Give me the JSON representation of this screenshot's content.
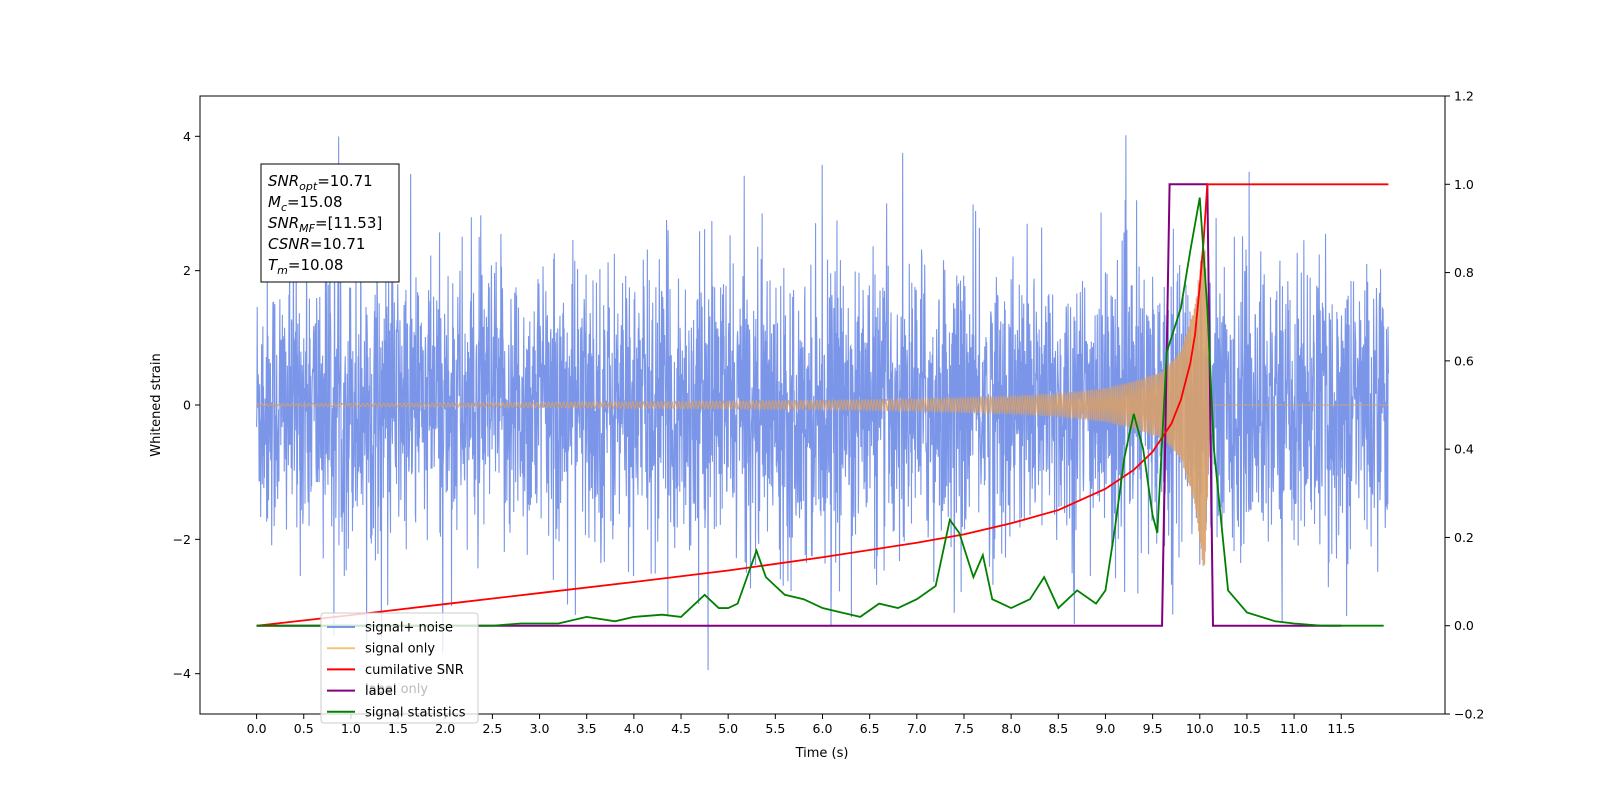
{
  "chart_data": {
    "type": "line",
    "xlabel": "Time (s)",
    "ylabel": "Whitened strain",
    "xlim": [
      -0.6,
      12.6
    ],
    "ylim_left": [
      -4.6,
      4.6
    ],
    "ylim_right": [
      -0.2,
      1.2
    ],
    "x_ticks": [
      0.0,
      0.5,
      1.0,
      1.5,
      2.0,
      2.5,
      3.0,
      3.5,
      4.0,
      4.5,
      5.0,
      5.5,
      6.0,
      6.5,
      7.0,
      7.5,
      8.0,
      8.5,
      9.0,
      9.5,
      10.0,
      10.5,
      11.0,
      11.5
    ],
    "x_tick_labels": [
      "0.0",
      "0.5",
      "1.0",
      "1.5",
      "2.0",
      "2.5",
      "3.0",
      "3.5",
      "4.0",
      "4.5",
      "5.0",
      "5.5",
      "6.0",
      "6.5",
      "7.0",
      "7.5",
      "8.0",
      "8.5",
      "9.0",
      "9.5",
      "10.0",
      "10.5",
      "11.0",
      "11.5"
    ],
    "y_left_ticks": [
      -4,
      -2,
      0,
      2,
      4
    ],
    "y_left_tick_labels": [
      "−4",
      "−2",
      "0",
      "2",
      "4"
    ],
    "y_right_ticks": [
      -0.2,
      0.0,
      0.2,
      0.4,
      0.6,
      0.8,
      1.0,
      1.2
    ],
    "y_right_tick_labels": [
      "−0.2",
      "0.0",
      "0.2",
      "0.4",
      "0.6",
      "0.8",
      "1.0",
      "1.2"
    ],
    "annotation": {
      "lines": [
        {
          "main": "SNR",
          "sub": "opt",
          "rest": "=10.71"
        },
        {
          "main": "M",
          "sub": "c",
          "rest": "=15.08"
        },
        {
          "main": "SNR",
          "sub": "MF",
          "rest": "=[11.53]"
        },
        {
          "main": "CSNR",
          "sub": "",
          "rest": "=10.71"
        },
        {
          "main": "T",
          "sub": "m",
          "rest": "=10.08"
        }
      ]
    },
    "legend": {
      "placement": "lower-left",
      "entries": [
        {
          "label": "signal+ noise",
          "color": "#7b96e8"
        },
        {
          "label": "signal only",
          "color": "#f5c27a"
        },
        {
          "label": "cumilative SNR",
          "color": "#ff0000"
        },
        {
          "label": "label",
          "color": "#800080"
        },
        {
          "label": "signal statistics",
          "color": "#008000"
        }
      ],
      "hidden_text": "label only"
    },
    "series": [
      {
        "name": "signal+ noise",
        "axis": "left",
        "color": "#7b96e8",
        "x_range": [
          0.0,
          12.0
        ],
        "noise_amplitude_typical": 2.8,
        "noise_amplitude_peak": 4.1
      },
      {
        "name": "signal only",
        "axis": "left",
        "color": "#d8a06a",
        "x_range": [
          0.0,
          12.0
        ],
        "merger_time": 10.08,
        "envelope_x": [
          0,
          2,
          4,
          6,
          7,
          8,
          8.5,
          9,
          9.3,
          9.6,
          9.8,
          9.95,
          10.05,
          10.12
        ],
        "envelope_y": [
          0.02,
          0.03,
          0.05,
          0.07,
          0.09,
          0.13,
          0.17,
          0.25,
          0.35,
          0.5,
          0.8,
          1.5,
          2.6,
          0
        ]
      },
      {
        "name": "cumilative SNR",
        "axis": "right",
        "color": "#ff0000",
        "x": [
          0.0,
          1.0,
          2.0,
          3.0,
          4.0,
          5.0,
          6.0,
          7.0,
          7.5,
          8.0,
          8.5,
          9.0,
          9.3,
          9.5,
          9.7,
          9.8,
          9.9,
          9.95,
          10.0,
          10.04,
          10.08,
          12.0
        ],
        "values": [
          0.0,
          0.024,
          0.049,
          0.074,
          0.099,
          0.125,
          0.155,
          0.188,
          0.207,
          0.232,
          0.262,
          0.31,
          0.353,
          0.394,
          0.458,
          0.512,
          0.595,
          0.66,
          0.77,
          0.87,
          1.0,
          1.0
        ]
      },
      {
        "name": "label",
        "axis": "right",
        "color": "#800080",
        "x": [
          0.0,
          9.6,
          9.68,
          10.08,
          10.14,
          11.5
        ],
        "values": [
          0.0,
          0.0,
          1.0,
          1.0,
          0.0,
          0.0
        ]
      },
      {
        "name": "signal statistics",
        "axis": "right",
        "color": "#008000",
        "x": [
          0.0,
          2.5,
          2.8,
          3.2,
          3.5,
          3.8,
          4.0,
          4.3,
          4.5,
          4.75,
          4.9,
          5.0,
          5.1,
          5.3,
          5.4,
          5.5,
          5.6,
          5.8,
          6.0,
          6.2,
          6.4,
          6.6,
          6.8,
          7.0,
          7.2,
          7.35,
          7.45,
          7.6,
          7.7,
          7.8,
          8.0,
          8.2,
          8.35,
          8.5,
          8.7,
          8.9,
          9.0,
          9.1,
          9.2,
          9.3,
          9.4,
          9.5,
          9.55,
          9.65,
          9.8,
          9.9,
          10.0,
          10.08,
          10.15,
          10.3,
          10.5,
          10.8,
          11.0,
          11.3,
          11.5,
          11.95
        ],
        "values": [
          0.0,
          0.0,
          0.005,
          0.005,
          0.02,
          0.01,
          0.02,
          0.025,
          0.02,
          0.07,
          0.04,
          0.04,
          0.05,
          0.17,
          0.11,
          0.09,
          0.07,
          0.06,
          0.04,
          0.03,
          0.02,
          0.05,
          0.04,
          0.06,
          0.09,
          0.24,
          0.21,
          0.11,
          0.16,
          0.06,
          0.04,
          0.06,
          0.11,
          0.04,
          0.08,
          0.05,
          0.08,
          0.22,
          0.38,
          0.48,
          0.4,
          0.25,
          0.21,
          0.62,
          0.72,
          0.85,
          0.97,
          0.72,
          0.4,
          0.08,
          0.03,
          0.01,
          0.005,
          0.0,
          0.0,
          0.0
        ]
      }
    ]
  }
}
